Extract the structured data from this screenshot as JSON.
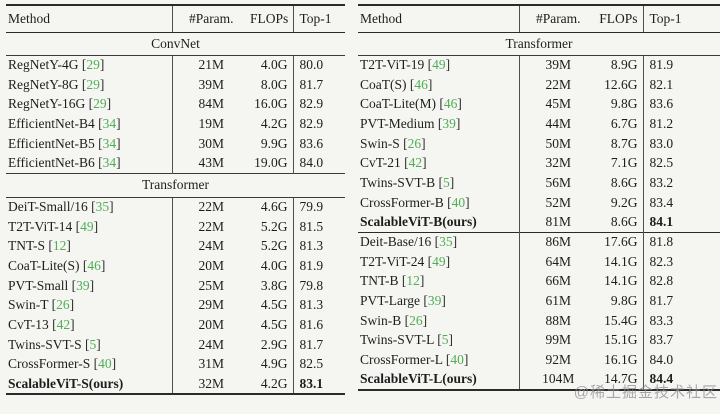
{
  "colors": {
    "citation_green": "#4fae55",
    "watermark_gray": "#8e8e8e"
  },
  "watermark": {
    "text": "@稀土掘金技术社区"
  },
  "tables": [
    {
      "name": "left-benchmark-table",
      "headers": [
        "Method",
        "#Param.",
        "FLOPs",
        "Top-1"
      ],
      "sections": [
        {
          "label": "ConvNet",
          "rows": [
            {
              "method": "RegNetY-4G",
              "cite": "29",
              "params": "21M",
              "flops": "4.0G",
              "top1": "80.0",
              "bold": false
            },
            {
              "method": "RegNetY-8G",
              "cite": "29",
              "params": "39M",
              "flops": "8.0G",
              "top1": "81.7",
              "bold": false
            },
            {
              "method": "RegNetY-16G",
              "cite": "29",
              "params": "84M",
              "flops": "16.0G",
              "top1": "82.9",
              "bold": false
            },
            {
              "method": "EfficientNet-B4",
              "cite": "34",
              "params": "19M",
              "flops": "4.2G",
              "top1": "82.9",
              "bold": false
            },
            {
              "method": "EfficientNet-B5",
              "cite": "34",
              "params": "30M",
              "flops": "9.9G",
              "top1": "83.6",
              "bold": false
            },
            {
              "method": "EfficientNet-B6",
              "cite": "34",
              "params": "43M",
              "flops": "19.0G",
              "top1": "84.0",
              "bold": false
            }
          ]
        },
        {
          "label": "Transformer",
          "rows": [
            {
              "method": "DeiT-Small/16",
              "cite": "35",
              "params": "22M",
              "flops": "4.6G",
              "top1": "79.9",
              "bold": false
            },
            {
              "method": "T2T-ViT-14",
              "cite": "49",
              "params": "22M",
              "flops": "5.2G",
              "top1": "81.5",
              "bold": false
            },
            {
              "method": "TNT-S",
              "cite": "12",
              "params": "24M",
              "flops": "5.2G",
              "top1": "81.3",
              "bold": false
            },
            {
              "method": "CoaT-Lite(S)",
              "cite": "46",
              "params": "20M",
              "flops": "4.0G",
              "top1": "81.9",
              "bold": false
            },
            {
              "method": "PVT-Small",
              "cite": "39",
              "params": "25M",
              "flops": "3.8G",
              "top1": "79.8",
              "bold": false
            },
            {
              "method": "Swin-T",
              "cite": "26",
              "params": "29M",
              "flops": "4.5G",
              "top1": "81.3",
              "bold": false
            },
            {
              "method": "CvT-13",
              "cite": "42",
              "params": "20M",
              "flops": "4.5G",
              "top1": "81.6",
              "bold": false
            },
            {
              "method": "Twins-SVT-S",
              "cite": "5",
              "params": "24M",
              "flops": "2.9G",
              "top1": "81.7",
              "bold": false
            },
            {
              "method": "CrossFormer-S",
              "cite": "40",
              "params": "31M",
              "flops": "4.9G",
              "top1": "82.5",
              "bold": false
            },
            {
              "method": "ScalableViT-S(ours)",
              "cite": "",
              "params": "32M",
              "flops": "4.2G",
              "top1": "83.1",
              "bold": true
            }
          ]
        }
      ]
    },
    {
      "name": "right-benchmark-table",
      "headers": [
        "Method",
        "#Param.",
        "FLOPs",
        "Top-1"
      ],
      "sections": [
        {
          "label": "Transformer",
          "rows": [
            {
              "method": "T2T-ViT-19",
              "cite": "49",
              "params": "39M",
              "flops": "8.9G",
              "top1": "81.9",
              "bold": false
            },
            {
              "method": "CoaT(S)",
              "cite": "46",
              "params": "22M",
              "flops": "12.6G",
              "top1": "82.1",
              "bold": false
            },
            {
              "method": "CoaT-Lite(M)",
              "cite": "46",
              "params": "45M",
              "flops": "9.8G",
              "top1": "83.6",
              "bold": false
            },
            {
              "method": "PVT-Medium",
              "cite": "39",
              "params": "44M",
              "flops": "6.7G",
              "top1": "81.2",
              "bold": false
            },
            {
              "method": "Swin-S",
              "cite": "26",
              "params": "50M",
              "flops": "8.7G",
              "top1": "83.0",
              "bold": false
            },
            {
              "method": "CvT-21",
              "cite": "42",
              "params": "32M",
              "flops": "7.1G",
              "top1": "82.5",
              "bold": false
            },
            {
              "method": "Twins-SVT-B",
              "cite": "5",
              "params": "56M",
              "flops": "8.6G",
              "top1": "83.2",
              "bold": false
            },
            {
              "method": "CrossFormer-B",
              "cite": "40",
              "params": "52M",
              "flops": "9.2G",
              "top1": "83.4",
              "bold": false
            },
            {
              "method": "ScalableViT-B(ours)",
              "cite": "",
              "params": "81M",
              "flops": "8.6G",
              "top1": "84.1",
              "bold": true
            }
          ]
        },
        {
          "label": "",
          "rows": [
            {
              "method": "Deit-Base/16",
              "cite": "35",
              "params": "86M",
              "flops": "17.6G",
              "top1": "81.8",
              "bold": false
            },
            {
              "method": "T2T-ViT-24",
              "cite": "49",
              "params": "64M",
              "flops": "14.1G",
              "top1": "82.3",
              "bold": false
            },
            {
              "method": "TNT-B",
              "cite": "12",
              "params": "66M",
              "flops": "14.1G",
              "top1": "82.8",
              "bold": false
            },
            {
              "method": "PVT-Large",
              "cite": "39",
              "params": "61M",
              "flops": "9.8G",
              "top1": "81.7",
              "bold": false
            },
            {
              "method": "Swin-B",
              "cite": "26",
              "params": "88M",
              "flops": "15.4G",
              "top1": "83.3",
              "bold": false
            },
            {
              "method": "Twins-SVT-L",
              "cite": "5",
              "params": "99M",
              "flops": "15.1G",
              "top1": "83.7",
              "bold": false
            },
            {
              "method": "CrossFormer-L",
              "cite": "40",
              "params": "92M",
              "flops": "16.1G",
              "top1": "84.0",
              "bold": false
            },
            {
              "method": "ScalableViT-L(ours)",
              "cite": "",
              "params": "104M",
              "flops": "14.7G",
              "top1": "84.4",
              "bold": true
            }
          ]
        }
      ]
    }
  ]
}
